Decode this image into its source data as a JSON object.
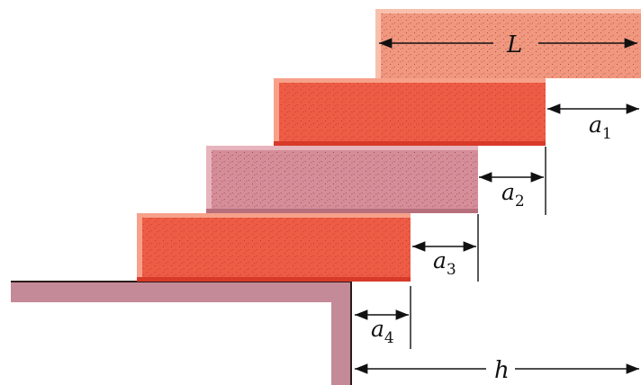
{
  "labels": {
    "L": "L",
    "a1": {
      "base": "a",
      "sub": "1"
    },
    "a2": {
      "base": "a",
      "sub": "2"
    },
    "a3": {
      "base": "a",
      "sub": "3"
    },
    "a4": {
      "base": "a",
      "sub": "4"
    },
    "h": "h"
  },
  "colors": {
    "brick_salmon": "#f0987f",
    "brick_red": "#ee5c45",
    "brick_pink": "#d48e9a",
    "table": "#c48a97",
    "table_edge": "#2a1a1a",
    "stipple": "#b83a3a",
    "arrow": "#111111"
  }
}
